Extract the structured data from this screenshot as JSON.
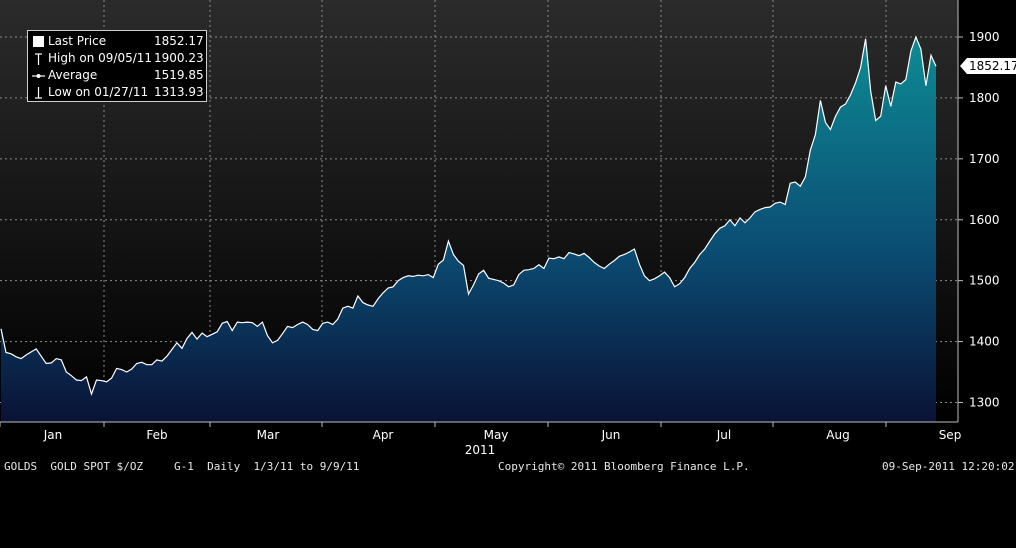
{
  "chart_data": {
    "type": "area",
    "title": "",
    "ylabel": "",
    "xlabel": "2011",
    "ylim": [
      1260,
      1960
    ],
    "y_ticks": [
      1300,
      1400,
      1500,
      1600,
      1700,
      1800,
      1900
    ],
    "month_ticks": [
      "Jan",
      "Feb",
      "Mar",
      "Apr",
      "May",
      "Jun",
      "Jul",
      "Aug",
      "Sep"
    ],
    "year_label": "2011",
    "grid": true,
    "last_price_label": "1852.17",
    "legend": [
      {
        "icon": "square-icon",
        "label": "Last Price",
        "value": "1852.17"
      },
      {
        "icon": "high-marker-icon",
        "label": "High on 09/05/11",
        "value": "1900.23"
      },
      {
        "icon": "average-marker-icon",
        "label": "Average",
        "value": "1519.85"
      },
      {
        "icon": "low-marker-icon",
        "label": "Low on 01/27/11",
        "value": "1313.93"
      }
    ],
    "series": [
      {
        "values": [
          1421,
          1382,
          1380,
          1375,
          1372,
          1378,
          1383,
          1388,
          1376,
          1364,
          1365,
          1372,
          1370,
          1350,
          1344,
          1337,
          1336,
          1342,
          1314,
          1337,
          1336,
          1334,
          1340,
          1356,
          1354,
          1350,
          1355,
          1364,
          1366,
          1362,
          1362,
          1370,
          1368,
          1376,
          1387,
          1398,
          1389,
          1405,
          1415,
          1404,
          1414,
          1408,
          1412,
          1416,
          1430,
          1433,
          1418,
          1432,
          1431,
          1432,
          1431,
          1425,
          1432,
          1410,
          1398,
          1402,
          1413,
          1425,
          1423,
          1428,
          1432,
          1428,
          1420,
          1418,
          1430,
          1432,
          1428,
          1437,
          1455,
          1458,
          1455,
          1475,
          1464,
          1460,
          1458,
          1470,
          1480,
          1488,
          1490,
          1500,
          1505,
          1508,
          1507,
          1509,
          1508,
          1510,
          1505,
          1527,
          1534,
          1565,
          1543,
          1532,
          1525,
          1478,
          1493,
          1511,
          1517,
          1504,
          1502,
          1500,
          1496,
          1490,
          1493,
          1510,
          1517,
          1518,
          1520,
          1526,
          1520,
          1537,
          1536,
          1539,
          1536,
          1546,
          1544,
          1541,
          1545,
          1538,
          1530,
          1524,
          1520,
          1527,
          1533,
          1540,
          1543,
          1547,
          1552,
          1527,
          1508,
          1500,
          1503,
          1508,
          1514,
          1505,
          1490,
          1495,
          1505,
          1520,
          1530,
          1543,
          1552,
          1565,
          1577,
          1586,
          1590,
          1600,
          1590,
          1603,
          1595,
          1603,
          1613,
          1617,
          1620,
          1621,
          1627,
          1629,
          1625,
          1660,
          1662,
          1655,
          1670,
          1714,
          1740,
          1796,
          1760,
          1748,
          1770,
          1785,
          1790,
          1805,
          1825,
          1850,
          1897,
          1811,
          1763,
          1770,
          1820,
          1786,
          1826,
          1823,
          1830,
          1877,
          1900,
          1880,
          1820,
          1870,
          1852
        ]
      }
    ]
  },
  "footer": {
    "ticker": "GOLDS  GOLD SPOT $/OZ",
    "settings": "G-1  Daily  1/3/11 to 9/9/11",
    "copyright": "Copyright© 2011 Bloomberg Finance L.P.",
    "timestamp": "09-Sep-2011 12:20:02"
  },
  "colors": {
    "line": "#ffffff",
    "fill_top": "#0d8b93",
    "fill_bottom": "#0a1235",
    "background_top": "#2b2b2b",
    "background_bottom": "#000000",
    "grid": "#8a8a8a"
  }
}
